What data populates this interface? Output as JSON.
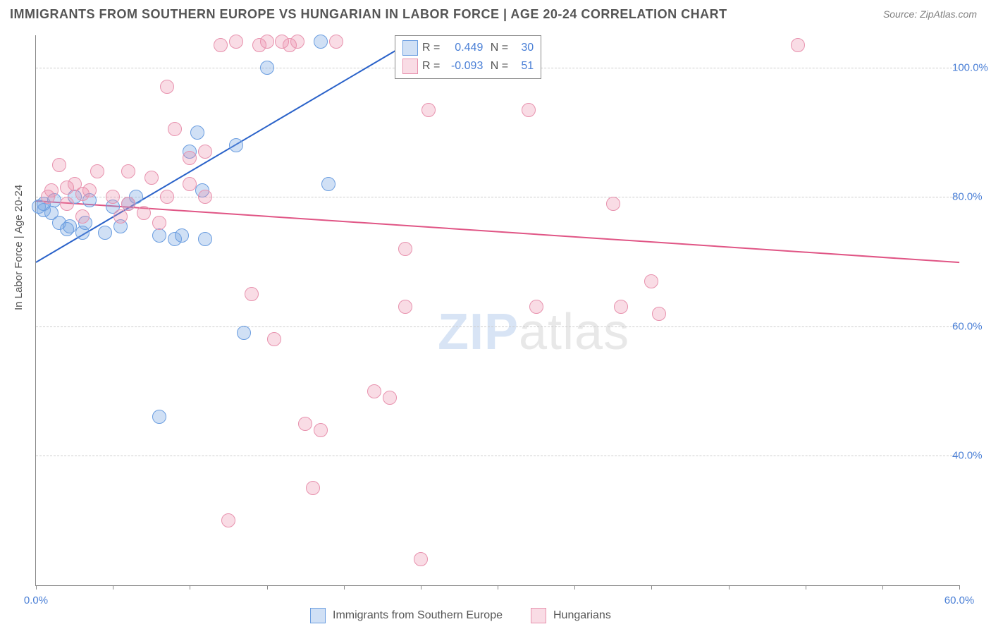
{
  "chart": {
    "title": "IMMIGRANTS FROM SOUTHERN EUROPE VS HUNGARIAN IN LABOR FORCE | AGE 20-24 CORRELATION CHART",
    "source": "Source: ZipAtlas.com",
    "y_axis_label": "In Labor Force | Age 20-24",
    "watermark_zip": "ZIP",
    "watermark_atlas": "atlas",
    "xlim": [
      0,
      60
    ],
    "ylim": [
      20,
      105
    ],
    "x_ticks": [
      0,
      5,
      10,
      15,
      20,
      25,
      30,
      35,
      40,
      45,
      50,
      55,
      60
    ],
    "x_tick_labels": {
      "0": "0.0%",
      "60": "60.0%"
    },
    "y_gridlines": [
      40,
      60,
      80,
      100
    ],
    "y_tick_labels": {
      "40": "40.0%",
      "60": "60.0%",
      "80": "80.0%",
      "100": "100.0%"
    },
    "background_color": "#ffffff",
    "grid_color": "#cccccc",
    "axis_color": "#888888",
    "tick_label_color": "#4a7fd6",
    "point_radius": 9,
    "series": [
      {
        "name": "Immigrants from Southern Europe",
        "short": "series1",
        "fill_color": "rgba(120,165,225,0.35)",
        "stroke_color": "#6a9de0",
        "line_color": "#2a62c9",
        "R": "0.449",
        "N": "30",
        "trend": {
          "x1": 0,
          "y1": 70,
          "x2": 25,
          "y2": 105
        },
        "points": [
          [
            0.2,
            78.5
          ],
          [
            0.5,
            78
          ],
          [
            0.5,
            79
          ],
          [
            1,
            77.5
          ],
          [
            1.2,
            79.5
          ],
          [
            1.5,
            76
          ],
          [
            2,
            75
          ],
          [
            2.2,
            75.5
          ],
          [
            2.5,
            80
          ],
          [
            3,
            74.5
          ],
          [
            3.2,
            76
          ],
          [
            3.5,
            79.5
          ],
          [
            4.5,
            74.5
          ],
          [
            5,
            78.5
          ],
          [
            5.5,
            75.5
          ],
          [
            6,
            79
          ],
          [
            6.5,
            80
          ],
          [
            8,
            74
          ],
          [
            8,
            46
          ],
          [
            9,
            73.5
          ],
          [
            9.5,
            74
          ],
          [
            10,
            87
          ],
          [
            10.5,
            90
          ],
          [
            10.8,
            81
          ],
          [
            11,
            73.5
          ],
          [
            13,
            88
          ],
          [
            13.5,
            59
          ],
          [
            15,
            100
          ],
          [
            18.5,
            104
          ],
          [
            19,
            82
          ]
        ]
      },
      {
        "name": "Hungarians",
        "short": "series2",
        "fill_color": "rgba(235,140,170,0.3)",
        "stroke_color": "#e892ae",
        "line_color": "#e05585",
        "R": "-0.093",
        "N": "51",
        "trend": {
          "x1": 0,
          "y1": 79.5,
          "x2": 60,
          "y2": 70
        },
        "points": [
          [
            0.8,
            80
          ],
          [
            1,
            81
          ],
          [
            1.5,
            85
          ],
          [
            2,
            79
          ],
          [
            2,
            81.5
          ],
          [
            2.5,
            82
          ],
          [
            3,
            80.5
          ],
          [
            3,
            77
          ],
          [
            3.5,
            81
          ],
          [
            4,
            84
          ],
          [
            5,
            80
          ],
          [
            5.5,
            77
          ],
          [
            6,
            84
          ],
          [
            6,
            79
          ],
          [
            7,
            77.5
          ],
          [
            7.5,
            83
          ],
          [
            8,
            76
          ],
          [
            8.5,
            97
          ],
          [
            8.5,
            80
          ],
          [
            9,
            90.5
          ],
          [
            10,
            86
          ],
          [
            10,
            82
          ],
          [
            11,
            80
          ],
          [
            11,
            87
          ],
          [
            12,
            103.5
          ],
          [
            12.5,
            30
          ],
          [
            13,
            104
          ],
          [
            14,
            65
          ],
          [
            14.5,
            103.5
          ],
          [
            15,
            104
          ],
          [
            15.5,
            58
          ],
          [
            16,
            104
          ],
          [
            16.5,
            103.5
          ],
          [
            17,
            104
          ],
          [
            17.5,
            45
          ],
          [
            18,
            35
          ],
          [
            18.5,
            44
          ],
          [
            19.5,
            104
          ],
          [
            22,
            50
          ],
          [
            23,
            49
          ],
          [
            24,
            63
          ],
          [
            24,
            72
          ],
          [
            25,
            24
          ],
          [
            25.5,
            93.5
          ],
          [
            32,
            93.5
          ],
          [
            32.5,
            63
          ],
          [
            37.5,
            79
          ],
          [
            38,
            63
          ],
          [
            40,
            67
          ],
          [
            40.5,
            62
          ],
          [
            49.5,
            103.5
          ]
        ]
      }
    ],
    "bottom_legend": [
      {
        "label": "Immigrants from Southern Europe"
      },
      {
        "label": "Hungarians"
      }
    ]
  }
}
